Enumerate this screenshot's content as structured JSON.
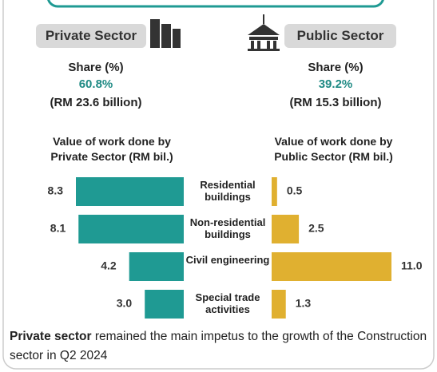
{
  "header": {
    "private": {
      "label": "Private Sector",
      "share_label": "Share (%)",
      "share": "60.8%",
      "amount": "(RM 23.6 billion)"
    },
    "public": {
      "label": "Public Sector",
      "share_label": "Share (%)",
      "share": "39.2%",
      "amount": "(RM 15.3 billion)"
    }
  },
  "chart_data": [
    {
      "type": "bar",
      "orientation": "horizontal",
      "title": "Value of work done by Private Sector (RM bil.)",
      "categories": [
        "Residential buildings",
        "Non-residential buildings",
        "Civil engineering",
        "Special trade activities"
      ],
      "values": [
        8.3,
        8.1,
        4.2,
        3.0
      ],
      "value_labels": [
        "8.3",
        "8.1",
        "4.2",
        "3.0"
      ],
      "color": "#1f9a93"
    },
    {
      "type": "bar",
      "orientation": "horizontal",
      "title": "Value of work done by Public Sector (RM bil.)",
      "values": [
        0.5,
        2.5,
        11.0,
        1.3
      ],
      "value_labels": [
        "0.5",
        "2.5",
        "11.0",
        "1.3"
      ],
      "color": "#e0b030"
    }
  ],
  "footer": {
    "bold": "Private sector",
    "text": "remained the main impetus to the growth of the Construction sector in Q2 2024"
  }
}
